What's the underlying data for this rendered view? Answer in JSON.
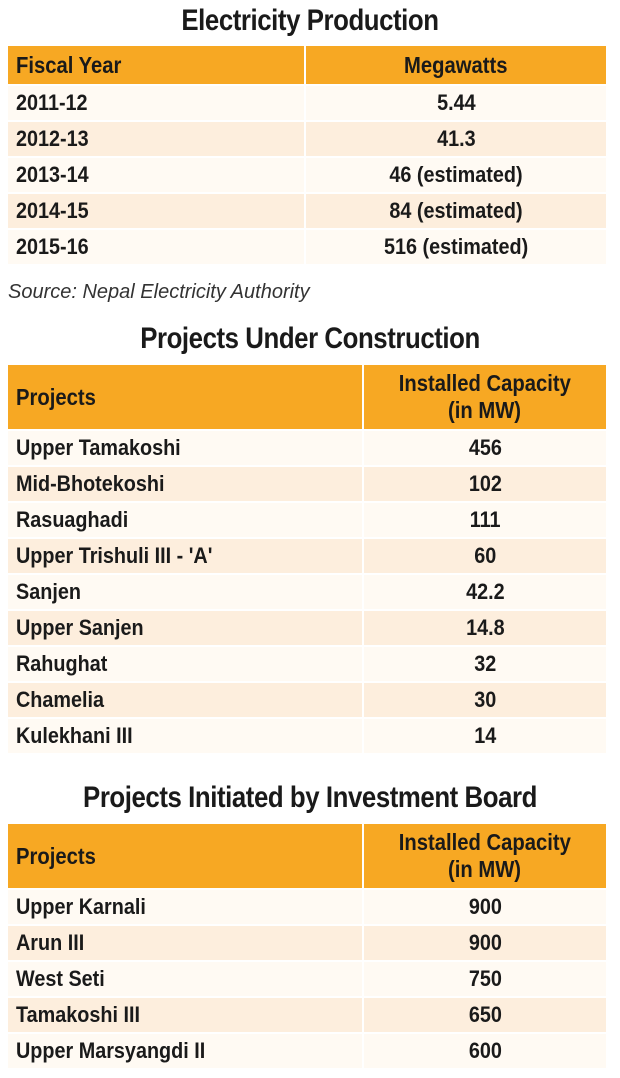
{
  "production": {
    "title": "Electricity Production",
    "col1": "Fiscal Year",
    "col2": "Megawatts",
    "rows": [
      {
        "a": "2011-12",
        "b": "5.44"
      },
      {
        "a": "2012-13",
        "b": "41.3"
      },
      {
        "a": "2013-14",
        "b": "46 (estimated)"
      },
      {
        "a": "2014-15",
        "b": "84 (estimated)"
      },
      {
        "a": "2015-16",
        "b": "516 (estimated)"
      }
    ],
    "source": "Source: Nepal Electricity Authority"
  },
  "construction": {
    "title": "Projects Under Construction",
    "col1": "Projects",
    "col2_line1": "Installed Capacity",
    "col2_line2": "(in MW)",
    "rows": [
      {
        "a": "Upper Tamakoshi",
        "b": "456"
      },
      {
        "a": "Mid-Bhotekoshi",
        "b": "102"
      },
      {
        "a": "Rasuaghadi",
        "b": "111"
      },
      {
        "a": "Upper Trishuli III - 'A'",
        "b": "60"
      },
      {
        "a": "Sanjen",
        "b": "42.2"
      },
      {
        "a": "Upper Sanjen",
        "b": "14.8"
      },
      {
        "a": "Rahughat",
        "b": "32"
      },
      {
        "a": "Chamelia",
        "b": "30"
      },
      {
        "a": "Kulekhani III",
        "b": "14"
      }
    ]
  },
  "investment": {
    "title": "Projects Initiated by Investment Board",
    "col1": "Projects",
    "col2_line1": "Installed Capacity",
    "col2_line2": "(in MW)",
    "rows": [
      {
        "a": "Upper Karnali",
        "b": "900"
      },
      {
        "a": "Arun III",
        "b": "900"
      },
      {
        "a": "West Seti",
        "b": "750"
      },
      {
        "a": "Tamakoshi III",
        "b": "650"
      },
      {
        "a": "Upper Marsyangdi II",
        "b": "600"
      }
    ]
  },
  "colors": {
    "header": "#f7a823",
    "row_light": "#fffaf3",
    "row_shade": "#fdeedd"
  }
}
